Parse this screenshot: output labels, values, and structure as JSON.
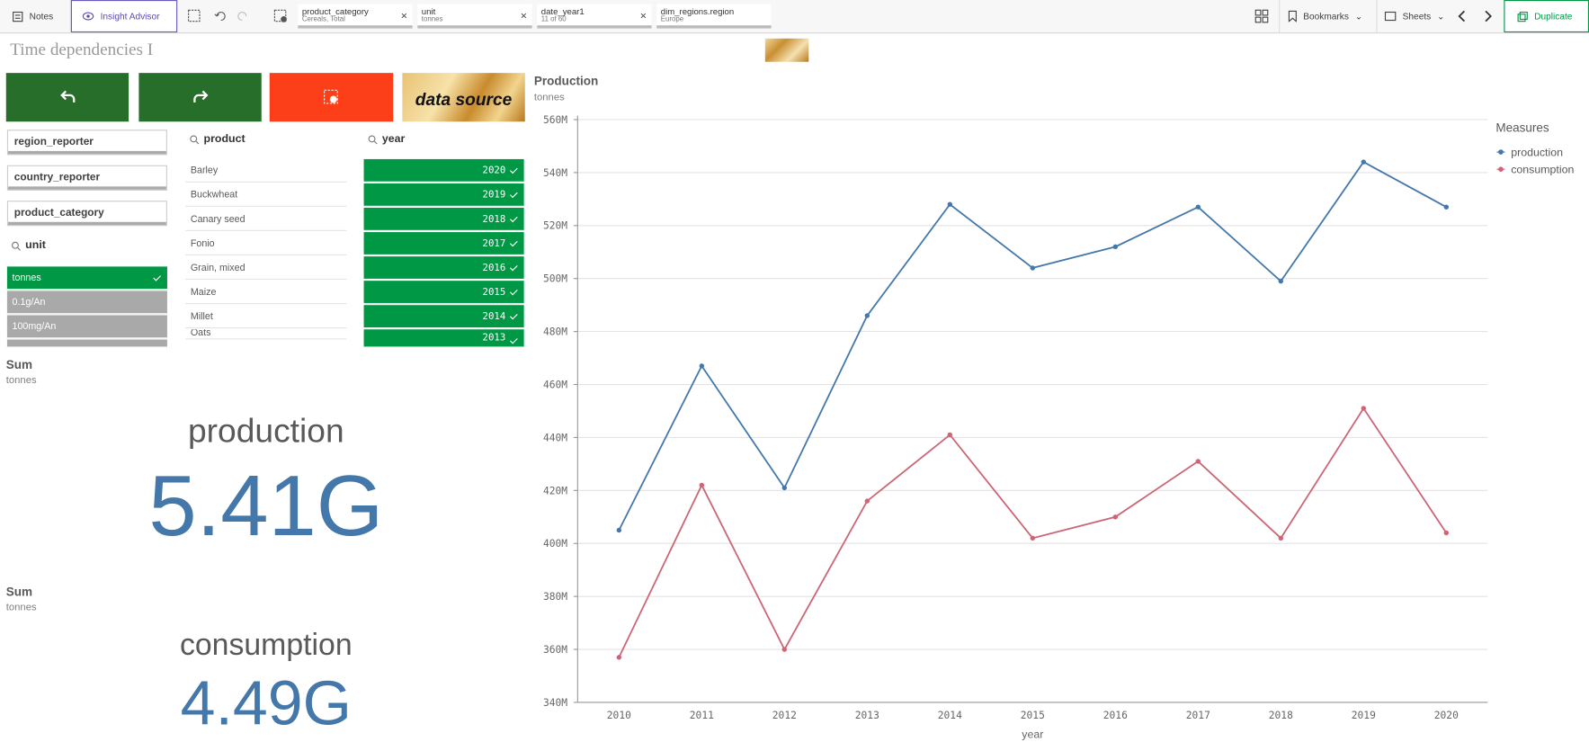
{
  "toolbar": {
    "notes": "Notes",
    "insight_advisor": "Insight Advisor",
    "selections": [
      {
        "field": "product_category",
        "value": "Cereals, Total"
      },
      {
        "field": "unit",
        "value": "tonnes"
      },
      {
        "field": "date_year1",
        "value": "11 of 60"
      },
      {
        "field": "dim_regions.region",
        "value": "Europe"
      }
    ],
    "bookmarks": "Bookmarks",
    "sheets": "Sheets",
    "duplicate": "Duplicate"
  },
  "sheet_title": "Time dependencies I",
  "data_source_button": "data source",
  "filters": [
    "region_reporter",
    "country_reporter",
    "product_category"
  ],
  "unit_list": {
    "title": "unit",
    "items": [
      "tonnes",
      "0.1g/An",
      "100mg/An"
    ]
  },
  "product_list": {
    "title": "product",
    "items": [
      "Barley",
      "Buckwheat",
      "Canary seed",
      "Fonio",
      "Grain, mixed",
      "Maize",
      "Millet",
      "Oats"
    ]
  },
  "year_list": {
    "title": "year",
    "items": [
      "2020",
      "2019",
      "2018",
      "2017",
      "2016",
      "2015",
      "2014",
      "2013"
    ]
  },
  "kpis": [
    {
      "title": "Sum",
      "subtitle": "tonnes",
      "label": "production",
      "value": "5.41G"
    },
    {
      "title": "Sum",
      "subtitle": "tonnes",
      "label": "consumption",
      "value": "4.49G"
    }
  ],
  "chart_data": {
    "type": "line",
    "title": "Production",
    "subtitle": "tonnes",
    "x_label": "year",
    "legend_title": "Measures",
    "categories": [
      "2010",
      "2011",
      "2012",
      "2013",
      "2014",
      "2015",
      "2016",
      "2017",
      "2018",
      "2019",
      "2020"
    ],
    "series": [
      {
        "name": "production",
        "color": "#4477aa",
        "values": [
          405000000,
          467000000,
          421000000,
          486000000,
          528000000,
          504000000,
          512000000,
          527000000,
          499000000,
          544000000,
          527000000
        ]
      },
      {
        "name": "consumption",
        "color": "#cc6677",
        "values": [
          357000000,
          422000000,
          360000000,
          416000000,
          441000000,
          402000000,
          410000000,
          431000000,
          402000000,
          451000000,
          404000000
        ]
      }
    ],
    "ylim": [
      340000000,
      560000000
    ],
    "yticks": [
      {
        "value": 340000000,
        "label": "340M"
      },
      {
        "value": 360000000,
        "label": "360M"
      },
      {
        "value": 380000000,
        "label": "380M"
      },
      {
        "value": 400000000,
        "label": "400M"
      },
      {
        "value": 420000000,
        "label": "420M"
      },
      {
        "value": 440000000,
        "label": "440M"
      },
      {
        "value": 460000000,
        "label": "460M"
      },
      {
        "value": 480000000,
        "label": "480M"
      },
      {
        "value": 500000000,
        "label": "500M"
      },
      {
        "value": 520000000,
        "label": "520M"
      },
      {
        "value": 540000000,
        "label": "540M"
      },
      {
        "value": 560000000,
        "label": "560M"
      }
    ],
    "grid": true
  }
}
